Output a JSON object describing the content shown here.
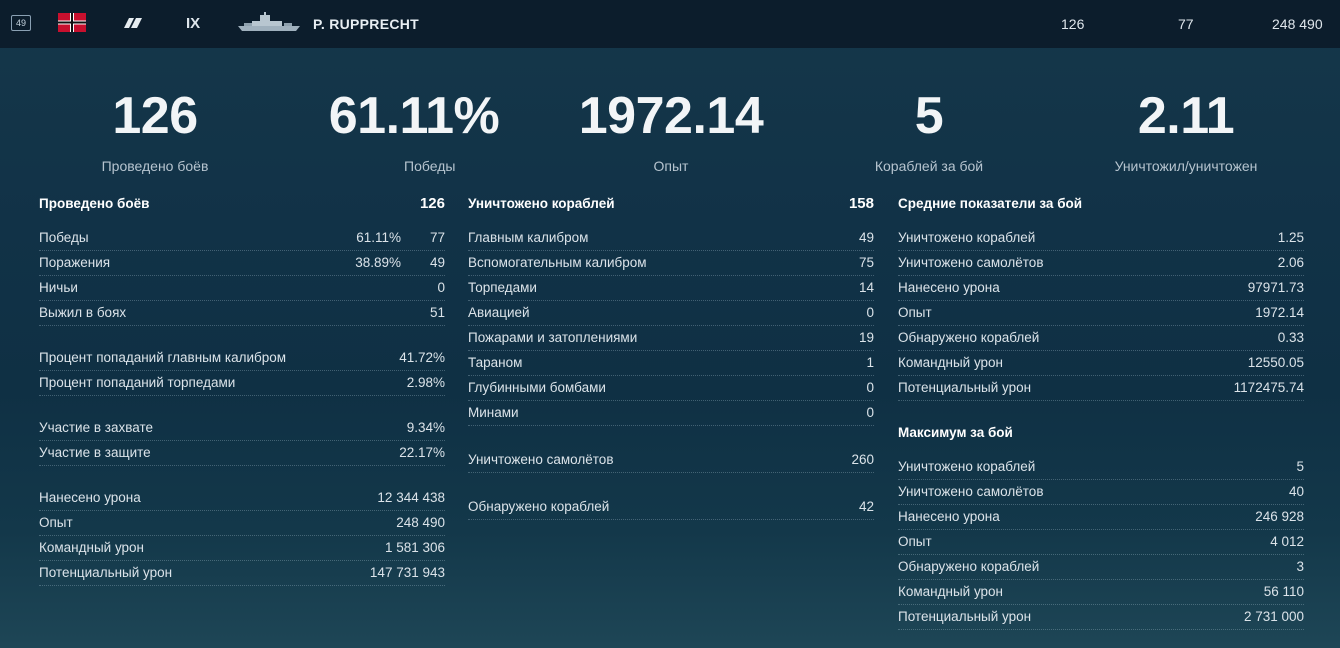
{
  "header": {
    "level": "49",
    "tier": "IX",
    "ship_name": "P. RUPPRECHT",
    "stat_battles": "126",
    "stat_wins": "77",
    "stat_exp": "248 490",
    "icons": [
      "flag-icon",
      "ship-class-icon",
      "ship-silhouette-icon"
    ]
  },
  "summary": [
    {
      "value": "126",
      "label": "Проведено боёв"
    },
    {
      "value": "61.11%",
      "label": "Победы"
    },
    {
      "value": "1972.14",
      "label": "Опыт"
    },
    {
      "value": "5",
      "label": "Кораблей за бой"
    },
    {
      "value": "2.11",
      "label": "Уничтожил/уничтожен"
    }
  ],
  "col1": {
    "head": {
      "label": "Проведено боёв",
      "value": "126"
    },
    "results": [
      {
        "label": "Победы",
        "pct": "61.11%",
        "value": "77"
      },
      {
        "label": "Поражения",
        "pct": "38.89%",
        "value": "49"
      },
      {
        "label": "Ничьи",
        "value": "0"
      },
      {
        "label": "Выжил в боях",
        "value": "51"
      }
    ],
    "accuracy": [
      {
        "label": "Процент попаданий главным калибром",
        "value": "41.72%"
      },
      {
        "label": "Процент попаданий торпедами",
        "value": "2.98%"
      }
    ],
    "bases": [
      {
        "label": "Участие в захвате",
        "value": "9.34%"
      },
      {
        "label": "Участие в защите",
        "value": "22.17%"
      }
    ],
    "totals": [
      {
        "label": "Нанесено урона",
        "value": "12 344 438"
      },
      {
        "label": "Опыт",
        "value": "248 490"
      },
      {
        "label": "Командный урон",
        "value": "1 581 306"
      },
      {
        "label": "Потенциальный урон",
        "value": "147 731 943"
      }
    ]
  },
  "col2": {
    "head": {
      "label": "Уничтожено кораблей",
      "value": "158"
    },
    "kills": [
      {
        "label": "Главным калибром",
        "value": "49"
      },
      {
        "label": "Вспомогательным калибром",
        "value": "75"
      },
      {
        "label": "Торпедами",
        "value": "14"
      },
      {
        "label": "Авиацией",
        "value": "0"
      },
      {
        "label": "Пожарами и затоплениями",
        "value": "19"
      },
      {
        "label": "Тараном",
        "value": "1"
      },
      {
        "label": "Глубинными бомбами",
        "value": "0"
      },
      {
        "label": "Минами",
        "value": "0"
      }
    ],
    "planes": {
      "label": "Уничтожено самолётов",
      "value": "260"
    },
    "spotted": {
      "label": "Обнаружено кораблей",
      "value": "42"
    }
  },
  "col3": {
    "avg_head": "Средние показатели за бой",
    "avg": [
      {
        "label": "Уничтожено кораблей",
        "value": "1.25"
      },
      {
        "label": "Уничтожено самолётов",
        "value": "2.06"
      },
      {
        "label": "Нанесено урона",
        "value": "97971.73"
      },
      {
        "label": "Опыт",
        "value": "1972.14"
      },
      {
        "label": "Обнаружено кораблей",
        "value": "0.33"
      },
      {
        "label": "Командный урон",
        "value": "12550.05"
      },
      {
        "label": "Потенциальный урон",
        "value": "1172475.74"
      }
    ],
    "max_head": "Максимум за бой",
    "max": [
      {
        "label": "Уничтожено кораблей",
        "value": "5"
      },
      {
        "label": "Уничтожено самолётов",
        "value": "40"
      },
      {
        "label": "Нанесено урона",
        "value": "246 928"
      },
      {
        "label": "Опыт",
        "value": "4 012"
      },
      {
        "label": "Обнаружено кораблей",
        "value": "3"
      },
      {
        "label": "Командный урон",
        "value": "56 110"
      },
      {
        "label": "Потенциальный урон",
        "value": "2 731 000"
      }
    ]
  }
}
